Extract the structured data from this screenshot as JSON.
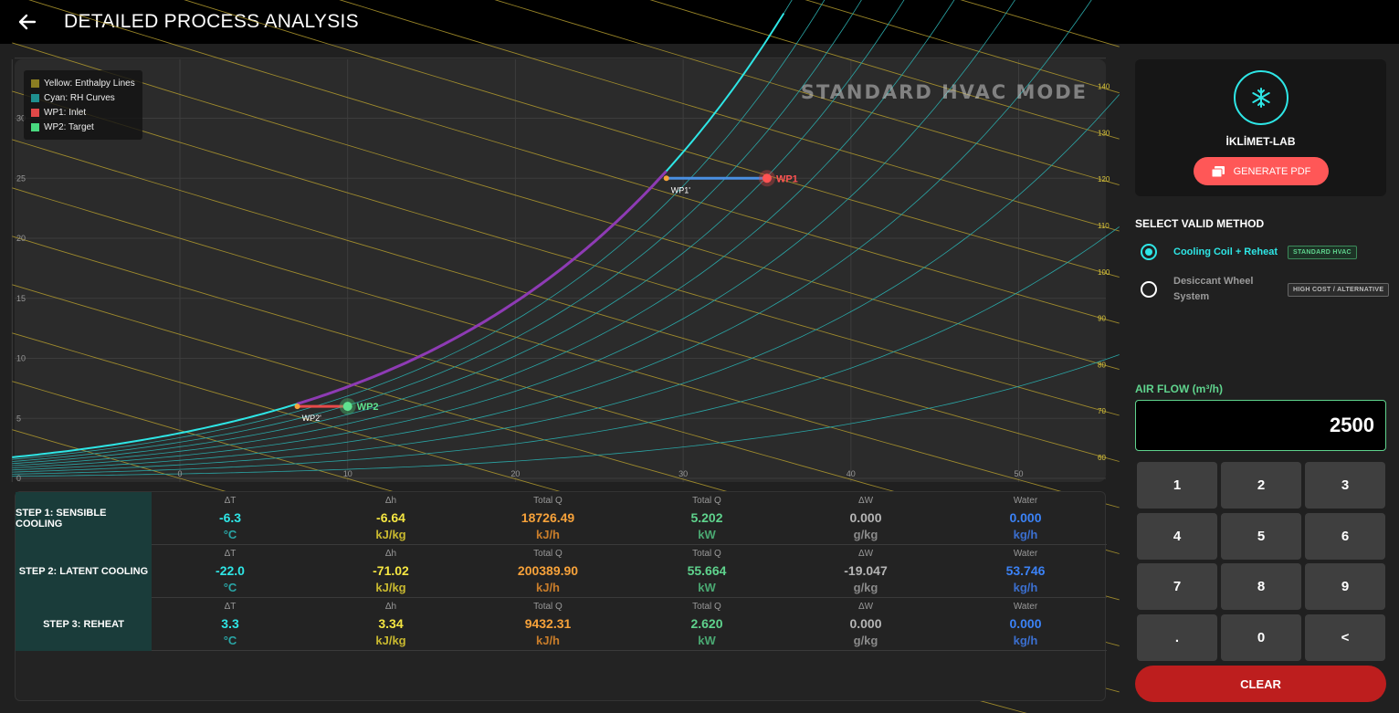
{
  "header": {
    "title": "DETAILED PROCESS ANALYSIS",
    "back_icon": "arrow-left-icon"
  },
  "chart": {
    "watermark": "STANDARD HVAC MODE",
    "legend": [
      {
        "label": "Yellow: Enthalpy Lines",
        "color": "#8a7d22"
      },
      {
        "label": "Cyan: RH Curves",
        "color": "#1f8f8f"
      },
      {
        "label": "WP1: Inlet",
        "color": "#e04848"
      },
      {
        "label": "WP2: Target",
        "color": "#49d97f"
      }
    ],
    "colors": {
      "saturation": "#2ee6e6",
      "rh": "#2aa6a6",
      "enthalpy": "#b39b2e",
      "process_cool": "#4a90e2",
      "process_latent": "#8e3bb4",
      "process_reheat": "#e84a4a",
      "grid": "#3d3d3d"
    },
    "x_ticks": [
      "0",
      "10",
      "20",
      "30",
      "40",
      "50"
    ],
    "y_ticks": [
      "0",
      "5",
      "10",
      "15",
      "20",
      "25",
      "30"
    ],
    "h_ticks": [
      "60",
      "70",
      "80",
      "90",
      "100",
      "110",
      "120",
      "130",
      "140"
    ],
    "points": {
      "wp1": {
        "label": "WP1",
        "t": 35,
        "w": 25
      },
      "wp1p": {
        "label": "WP1'",
        "t": 29,
        "w": 25
      },
      "wp2p": {
        "label": "WP2'",
        "t": 7,
        "w": 6
      },
      "wp2": {
        "label": "WP2",
        "t": 10,
        "w": 6
      }
    }
  },
  "table": {
    "headers": [
      "ΔT",
      "Δh",
      "Total Q",
      "Total Q",
      "ΔW",
      "Water"
    ],
    "units": [
      "°C",
      "kJ/kg",
      "kJ/h",
      "kW",
      "g/kg",
      "kg/h"
    ],
    "colors": [
      "#2ee6e6",
      "#f5e642",
      "#f7a23a",
      "#5fd38d",
      "#b5b5b5",
      "#3b82f6"
    ],
    "rows": [
      {
        "label": "STEP 1: SENSIBLE COOLING",
        "values": [
          "-6.3",
          "-6.64",
          "18726.49",
          "5.202",
          "0.000",
          "0.000"
        ]
      },
      {
        "label": "STEP 2: LATENT COOLING",
        "values": [
          "-22.0",
          "-71.02",
          "200389.90",
          "55.664",
          "-19.047",
          "53.746"
        ]
      },
      {
        "label": "STEP 3: REHEAT",
        "values": [
          "3.3",
          "3.34",
          "9432.31",
          "2.620",
          "0.000",
          "0.000"
        ]
      }
    ]
  },
  "sidebar": {
    "brand": "İKLİMET-LAB",
    "brand_icon": "snowflake-icon",
    "pdf_button": "GENERATE PDF",
    "method_title": "SELECT VALID METHOD",
    "methods": [
      {
        "name": "Cooling Coil + Reheat",
        "badge": "STANDARD HVAC",
        "selected": true
      },
      {
        "name": "Desiccant Wheel System",
        "badge": "HIGH COST / ALTERNATIVE",
        "selected": false
      }
    ],
    "airflow_label": "AIR FLOW (m³/h)",
    "airflow_value": "2500",
    "keys": [
      "1",
      "2",
      "3",
      "4",
      "5",
      "6",
      "7",
      "8",
      "9",
      ".",
      "0",
      "<"
    ],
    "clear_button": "CLEAR"
  }
}
